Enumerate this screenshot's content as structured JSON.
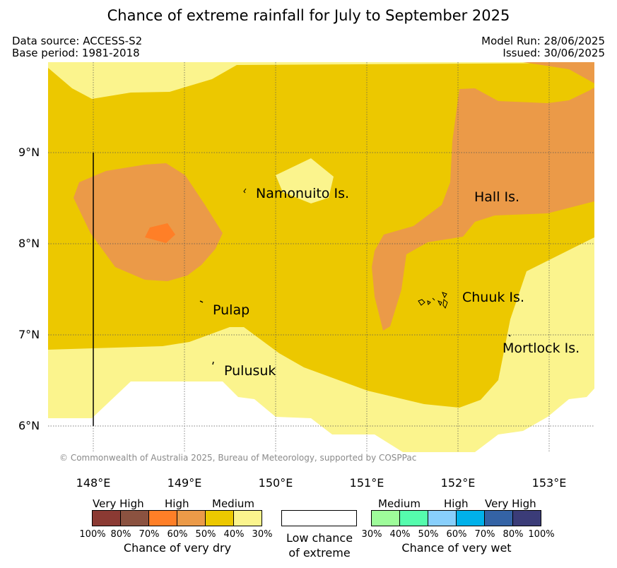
{
  "title": "Chance of extreme rainfall for July to September 2025",
  "meta": {
    "data_source": "Data source: ACCESS-S2",
    "base_period": "Base period: 1981-2018",
    "model_run": "Model Run: 28/06/2025",
    "issued": "Issued: 30/06/2025"
  },
  "axes": {
    "latitudes": [
      "9°N",
      "8°N",
      "7°N",
      "6°N"
    ],
    "longitudes": [
      "148°E",
      "149°E",
      "150°E",
      "151°E",
      "152°E",
      "153°E"
    ]
  },
  "places": {
    "namonuito": "Namonuito Is.",
    "hall": "Hall Is.",
    "pulap": "Pulap",
    "chuuk": "Chuuk Is.",
    "mortlock": "Mortlock Is.",
    "pulusuk": "Pulusuk"
  },
  "copyright": "© Commonwealth of Australia 2025, Bureau of Meteorology, supported by COSPPac",
  "colors": {
    "dry_very_high_1": "#8b3a33",
    "dry_very_high_2": "#8b5240",
    "dry_high_1": "#ff7f27",
    "dry_high_2": "#eb9a48",
    "dry_medium_1": "#ecc800",
    "dry_medium_2": "#fbf48d",
    "low": "#ffffff",
    "wet_medium_1": "#9efc9a",
    "wet_medium_2": "#55fcad",
    "wet_high_1": "#88cffc",
    "wet_high_2": "#00b1ea",
    "wet_very_high_1": "#3463a5",
    "wet_very_high_2": "#3b3c78"
  },
  "legend": {
    "dry": {
      "headings": [
        "Very High",
        "High",
        "Medium"
      ],
      "percentages": [
        "100%",
        "80%",
        "70%",
        "60%",
        "50%",
        "40%",
        "30%"
      ],
      "caption": "Chance of very dry"
    },
    "low": {
      "caption_line1": "Low chance",
      "caption_line2": "of extreme"
    },
    "wet": {
      "headings": [
        "Medium",
        "High",
        "Very High"
      ],
      "percentages": [
        "30%",
        "40%",
        "50%",
        "60%",
        "70%",
        "80%",
        "100%"
      ],
      "caption": "Chance of very wet"
    }
  }
}
